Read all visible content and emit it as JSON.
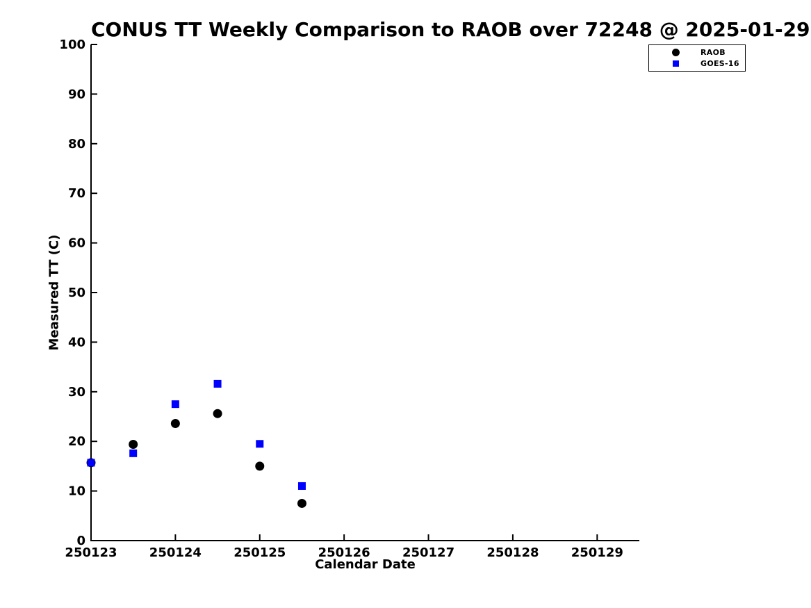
{
  "chart_data": {
    "type": "scatter",
    "title": "CONUS TT Weekly Comparison to RAOB over 72248 @ 2025-01-29",
    "xlabel": "Calendar Date",
    "ylabel": "Measured TT (C)",
    "xlim": [
      250123,
      250129.5
    ],
    "ylim": [
      0,
      100
    ],
    "xticks": [
      250123,
      250124,
      250125,
      250126,
      250127,
      250128,
      250129
    ],
    "yticks": [
      0,
      10,
      20,
      30,
      40,
      50,
      60,
      70,
      80,
      90,
      100
    ],
    "grid": false,
    "legend": {
      "position": "upper-right-outside",
      "entries": [
        "RAOB",
        "GOES-16"
      ]
    },
    "series": [
      {
        "name": "RAOB",
        "marker": "circle",
        "color": "#000000",
        "x": [
          250123,
          250123.5,
          250124,
          250124.5,
          250125,
          250125.5
        ],
        "y": [
          15.7,
          19.4,
          23.6,
          25.6,
          15.0,
          7.5
        ]
      },
      {
        "name": "GOES-16",
        "marker": "square",
        "color": "#0000ff",
        "x": [
          250123,
          250123.5,
          250124,
          250124.5,
          250125,
          250125.5
        ],
        "y": [
          15.7,
          17.6,
          27.5,
          31.6,
          19.5,
          11.0
        ]
      }
    ]
  }
}
